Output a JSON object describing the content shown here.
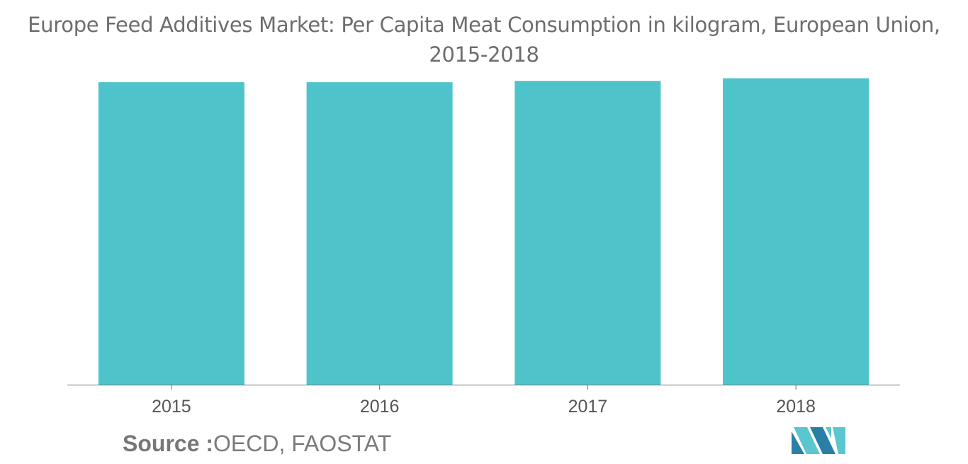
{
  "title": "Europe Feed Additives Market: Per Capita Meat Consumption in kilogram, European Union, 2015-2018",
  "source": {
    "label": "Source :",
    "value": "OECD, FAOSTAT"
  },
  "colors": {
    "bar": "#4fc3ca",
    "axis": "#6f6f6f",
    "text": "#555555",
    "logo_dark": "#2a7fa6",
    "logo_light": "#5ac6d0"
  },
  "logo_icon": "mordor-intelligence-logo-icon",
  "chart_data": {
    "type": "bar",
    "categories": [
      "2015",
      "2016",
      "2017",
      "2018"
    ],
    "values": [
      68.7,
      68.7,
      69.0,
      69.6
    ],
    "ylim": [
      0,
      70
    ],
    "grid": false,
    "xlabel": "",
    "ylabel": ""
  }
}
